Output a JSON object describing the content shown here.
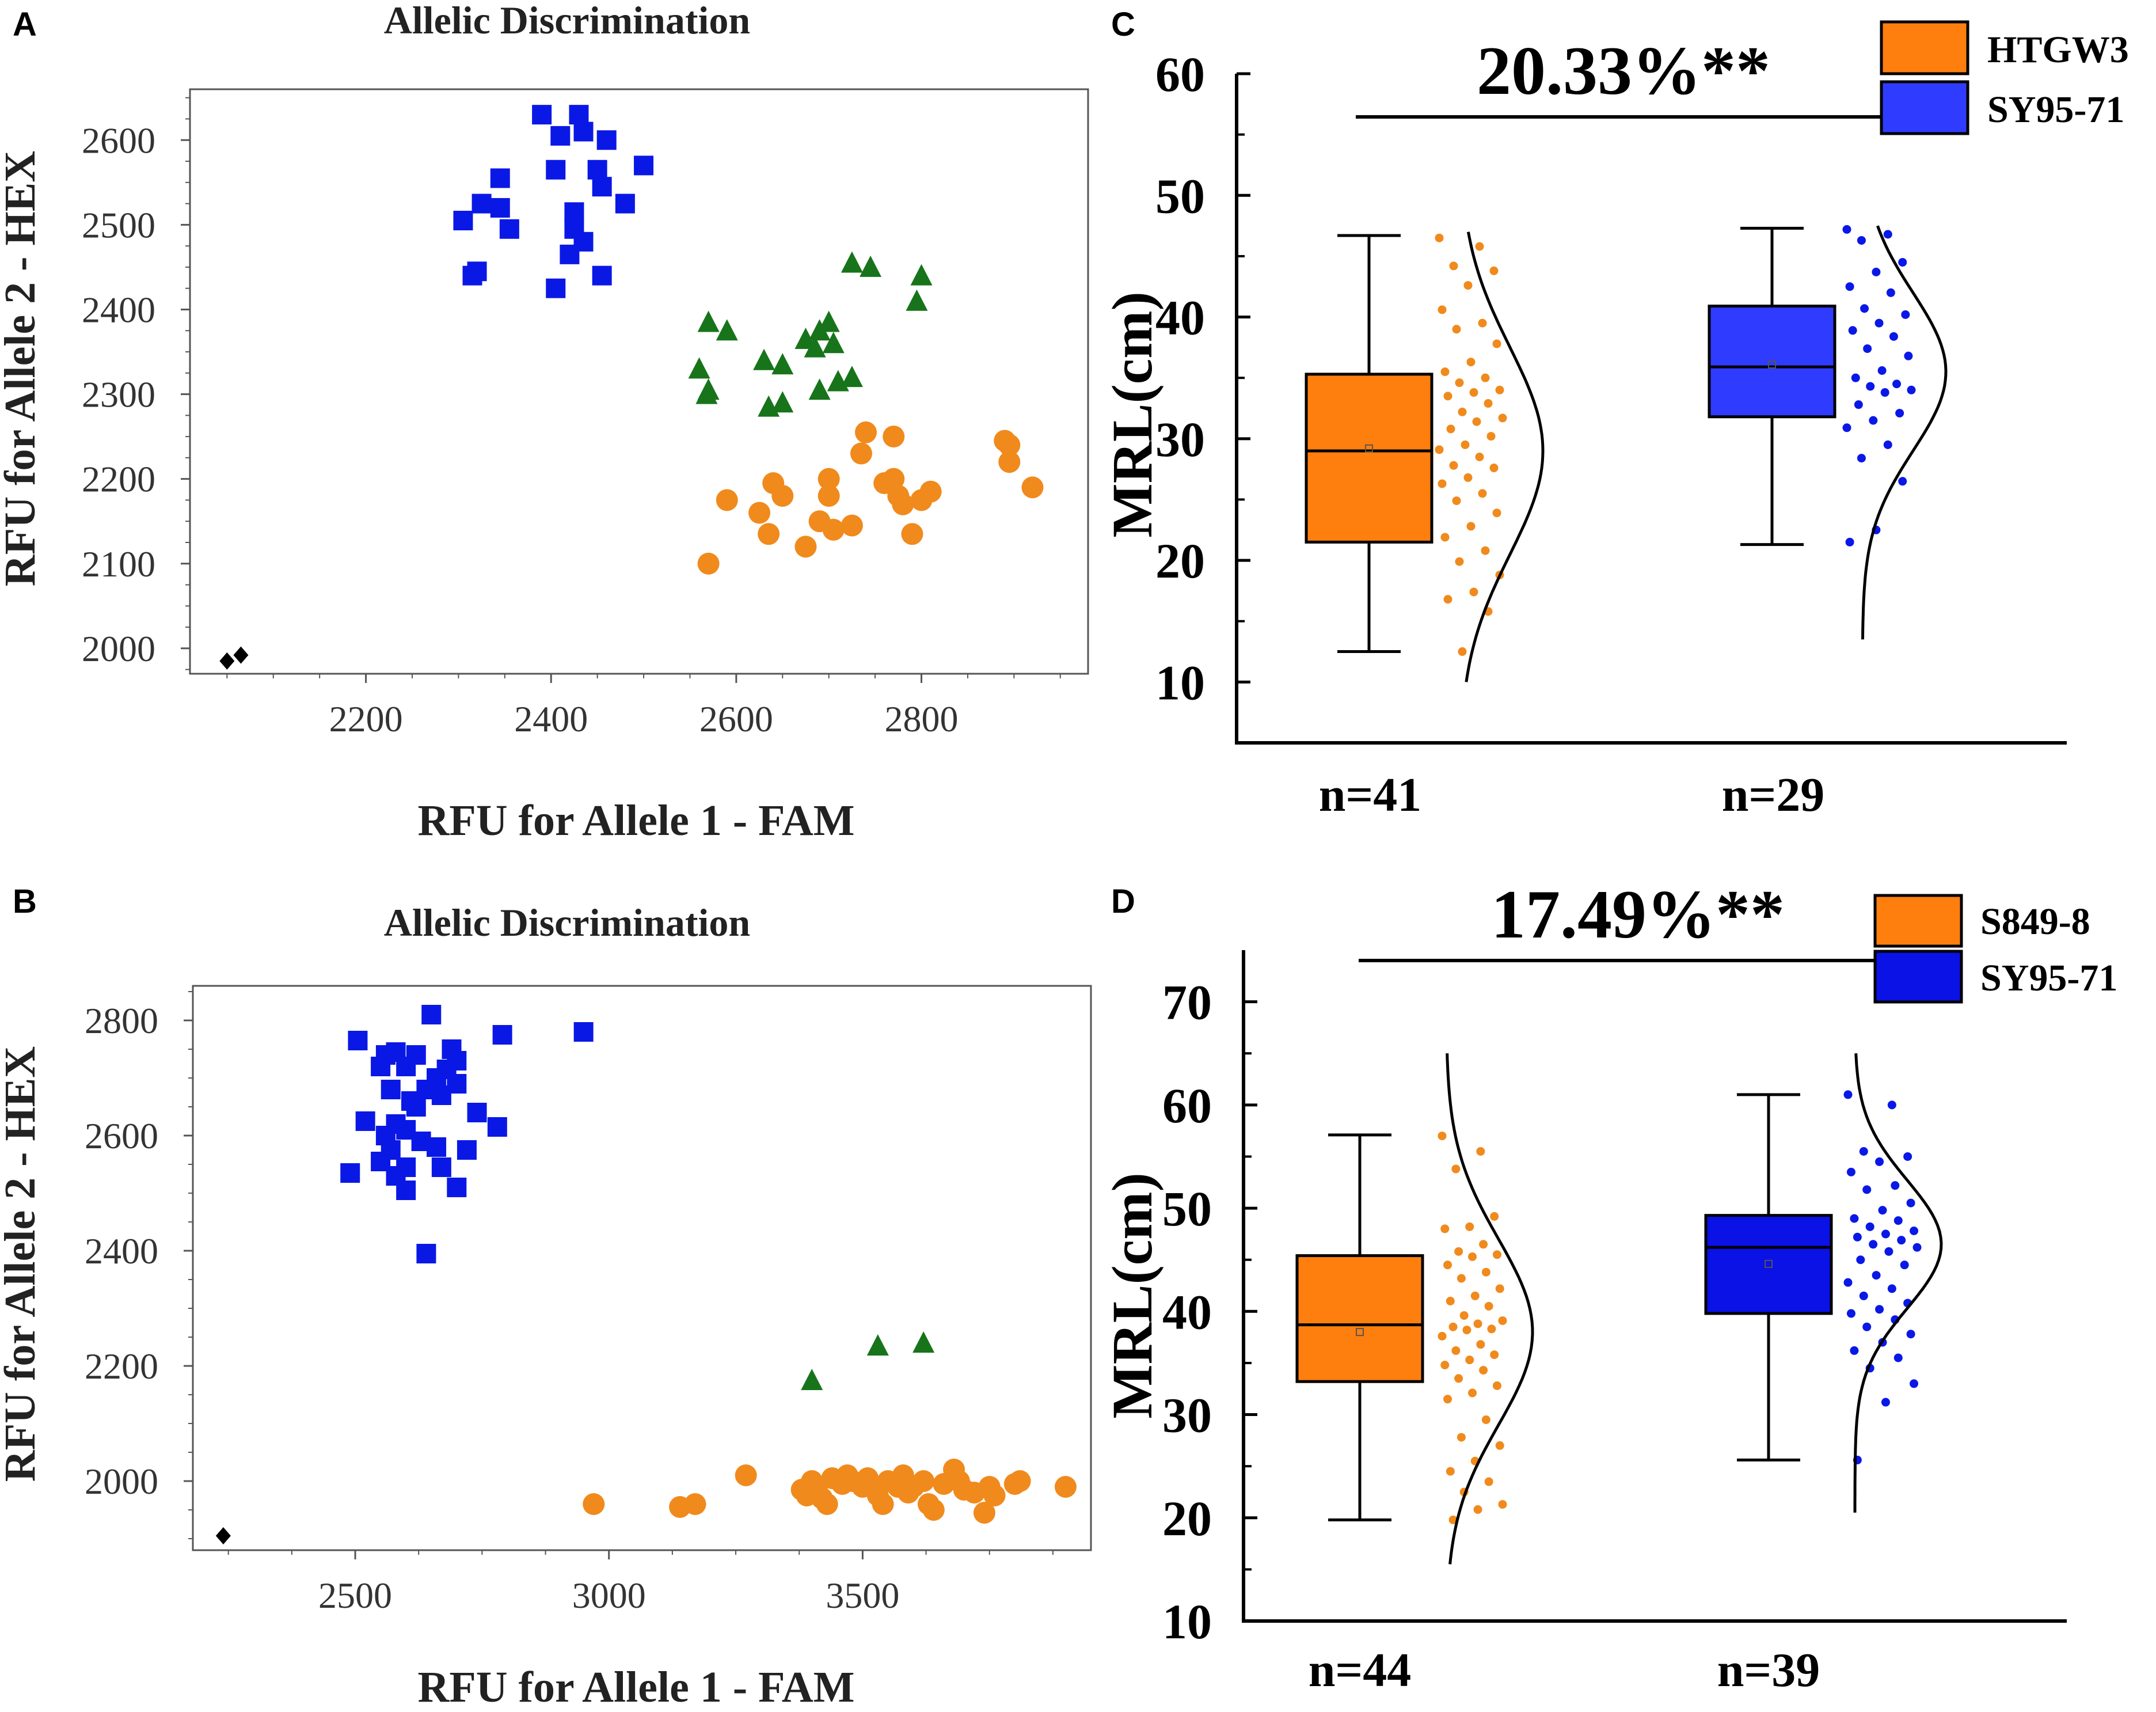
{
  "colors": {
    "blue_marker": "#0a18e6",
    "green_marker": "#17741a",
    "orange_marker": "#f08a1c",
    "black_marker": "#000000",
    "orange_box": "#ff7f0e",
    "blue_box_c": "#2f3cff",
    "blue_box_d": "#0a12e6",
    "axis_box": "#555555"
  },
  "chart_data": [
    {
      "panel": "A",
      "type": "scatter",
      "title": "Allelic Discrimination",
      "xlabel": "RFU for Allele 1 - FAM",
      "ylabel": "RFU for Allele 2 - HEX",
      "xlim": [
        2010,
        2980
      ],
      "ylim": [
        1970,
        2660
      ],
      "xticks": [
        2200,
        2400,
        2600,
        2800
      ],
      "yticks": [
        2000,
        2100,
        2200,
        2300,
        2400,
        2500,
        2600
      ],
      "series": [
        {
          "name": "blue",
          "marker": "square",
          "color": "#0a18e6",
          "points": [
            [
              2390,
              2630
            ],
            [
              2430,
              2630
            ],
            [
              2410,
              2605
            ],
            [
              2435,
              2610
            ],
            [
              2460,
              2600
            ],
            [
              2500,
              2570
            ],
            [
              2345,
              2555
            ],
            [
              2405,
              2565
            ],
            [
              2450,
              2565
            ],
            [
              2455,
              2545
            ],
            [
              2480,
              2525
            ],
            [
              2305,
              2505
            ],
            [
              2325,
              2525
            ],
            [
              2345,
              2520
            ],
            [
              2355,
              2495
            ],
            [
              2425,
              2515
            ],
            [
              2425,
              2495
            ],
            [
              2435,
              2480
            ],
            [
              2420,
              2465
            ],
            [
              2405,
              2425
            ],
            [
              2455,
              2440
            ],
            [
              2315,
              2440
            ],
            [
              2320,
              2445
            ]
          ]
        },
        {
          "name": "green",
          "marker": "triangle",
          "color": "#17741a",
          "points": [
            [
              2570,
              2385
            ],
            [
              2590,
              2375
            ],
            [
              2560,
              2330
            ],
            [
              2568,
              2300
            ],
            [
              2570,
              2305
            ],
            [
              2630,
              2340
            ],
            [
              2650,
              2335
            ],
            [
              2635,
              2285
            ],
            [
              2650,
              2290
            ],
            [
              2675,
              2365
            ],
            [
              2685,
              2355
            ],
            [
              2690,
              2375
            ],
            [
              2700,
              2385
            ],
            [
              2705,
              2360
            ],
            [
              2690,
              2305
            ],
            [
              2710,
              2315
            ],
            [
              2725,
              2320
            ],
            [
              2725,
              2455
            ],
            [
              2745,
              2450
            ],
            [
              2795,
              2410
            ],
            [
              2800,
              2440
            ]
          ]
        },
        {
          "name": "orange",
          "marker": "circle",
          "color": "#f08a1c",
          "points": [
            [
              2570,
              2100
            ],
            [
              2590,
              2175
            ],
            [
              2625,
              2160
            ],
            [
              2640,
              2195
            ],
            [
              2650,
              2180
            ],
            [
              2635,
              2135
            ],
            [
              2675,
              2120
            ],
            [
              2690,
              2150
            ],
            [
              2700,
              2180
            ],
            [
              2700,
              2200
            ],
            [
              2705,
              2140
            ],
            [
              2725,
              2145
            ],
            [
              2740,
              2255
            ],
            [
              2735,
              2230
            ],
            [
              2760,
              2195
            ],
            [
              2770,
              2250
            ],
            [
              2770,
              2200
            ],
            [
              2775,
              2180
            ],
            [
              2780,
              2170
            ],
            [
              2790,
              2135
            ],
            [
              2800,
              2175
            ],
            [
              2810,
              2185
            ],
            [
              2890,
              2245
            ],
            [
              2895,
              2240
            ],
            [
              2895,
              2220
            ],
            [
              2920,
              2190
            ]
          ]
        },
        {
          "name": "black",
          "marker": "diamond",
          "color": "#000000",
          "points": [
            [
              2050,
              1985
            ],
            [
              2065,
              1992
            ]
          ]
        }
      ]
    },
    {
      "panel": "B",
      "type": "scatter",
      "title": "Allelic Discrimination",
      "xlabel": "RFU for Allele 1 - FAM",
      "ylabel": "RFU for Allele 2 - HEX",
      "xlim": [
        2180,
        3950
      ],
      "ylim": [
        1880,
        2860
      ],
      "xticks": [
        2500,
        3000,
        3500
      ],
      "yticks": [
        2000,
        2200,
        2400,
        2600,
        2800
      ],
      "series": [
        {
          "name": "blue",
          "marker": "square",
          "color": "#0a18e6",
          "points": [
            [
              2650,
              2810
            ],
            [
              2950,
              2780
            ],
            [
              2790,
              2775
            ],
            [
              2505,
              2765
            ],
            [
              2560,
              2740
            ],
            [
              2580,
              2745
            ],
            [
              2620,
              2740
            ],
            [
              2690,
              2750
            ],
            [
              2700,
              2730
            ],
            [
              2550,
              2720
            ],
            [
              2600,
              2720
            ],
            [
              2680,
              2715
            ],
            [
              2660,
              2700
            ],
            [
              2700,
              2690
            ],
            [
              2570,
              2680
            ],
            [
              2640,
              2680
            ],
            [
              2610,
              2660
            ],
            [
              2620,
              2650
            ],
            [
              2670,
              2670
            ],
            [
              2520,
              2625
            ],
            [
              2580,
              2620
            ],
            [
              2740,
              2640
            ],
            [
              2780,
              2615
            ],
            [
              2560,
              2600
            ],
            [
              2600,
              2610
            ],
            [
              2630,
              2590
            ],
            [
              2570,
              2575
            ],
            [
              2660,
              2580
            ],
            [
              2720,
              2575
            ],
            [
              2550,
              2555
            ],
            [
              2600,
              2545
            ],
            [
              2670,
              2545
            ],
            [
              2490,
              2535
            ],
            [
              2580,
              2530
            ],
            [
              2700,
              2510
            ],
            [
              2600,
              2505
            ],
            [
              2640,
              2395
            ]
          ]
        },
        {
          "name": "green",
          "marker": "triangle",
          "color": "#17741a",
          "points": [
            [
              3400,
              2175
            ],
            [
              3530,
              2235
            ],
            [
              3620,
              2240
            ]
          ]
        },
        {
          "name": "orange",
          "marker": "circle",
          "color": "#f08a1c",
          "points": [
            [
              2970,
              1960
            ],
            [
              3140,
              1955
            ],
            [
              3170,
              1960
            ],
            [
              3270,
              2010
            ],
            [
              3380,
              1985
            ],
            [
              3390,
              1975
            ],
            [
              3400,
              2000
            ],
            [
              3410,
              1990
            ],
            [
              3420,
              1970
            ],
            [
              3430,
              1960
            ],
            [
              3440,
              2005
            ],
            [
              3460,
              1995
            ],
            [
              3470,
              2010
            ],
            [
              3480,
              2000
            ],
            [
              3500,
              1990
            ],
            [
              3510,
              2005
            ],
            [
              3520,
              1990
            ],
            [
              3530,
              1975
            ],
            [
              3540,
              1960
            ],
            [
              3550,
              2000
            ],
            [
              3570,
              1990
            ],
            [
              3580,
              2010
            ],
            [
              3590,
              1980
            ],
            [
              3600,
              1990
            ],
            [
              3620,
              2000
            ],
            [
              3630,
              1960
            ],
            [
              3640,
              1950
            ],
            [
              3660,
              1995
            ],
            [
              3680,
              2020
            ],
            [
              3690,
              2000
            ],
            [
              3700,
              1985
            ],
            [
              3720,
              1980
            ],
            [
              3740,
              1945
            ],
            [
              3750,
              1990
            ],
            [
              3760,
              1975
            ],
            [
              3800,
              1995
            ],
            [
              3810,
              2000
            ],
            [
              3900,
              1990
            ]
          ]
        },
        {
          "name": "black",
          "marker": "diamond",
          "color": "#000000",
          "points": [
            [
              2240,
              1905
            ]
          ]
        }
      ]
    },
    {
      "panel": "C",
      "type": "box",
      "ylabel": "MRL(cm)",
      "ylim": [
        5,
        60
      ],
      "yticks": [
        10,
        20,
        30,
        40,
        50,
        60
      ],
      "significance": "20.33%**",
      "legend": [
        "HTGW3",
        "SY95-71"
      ],
      "groups": [
        {
          "name": "HTGW3",
          "n_label": "n=41",
          "color": "#ff7f0e",
          "dot_color": "#f08a1c",
          "min": 12.5,
          "q1": 21.5,
          "median": 29,
          "q3": 35.3,
          "max": 46.7,
          "mean": 29.2,
          "normal_mu": 29,
          "normal_sigma": 8.5,
          "curve_range": [
            10,
            47
          ],
          "points": [
            46.5,
            45.8,
            44.2,
            43.8,
            42.6,
            40.6,
            39.5,
            39,
            37.8,
            36.3,
            35.5,
            35,
            34.6,
            34,
            33.8,
            33.5,
            32.9,
            32.2,
            31.7,
            31.4,
            30.8,
            30.2,
            29.5,
            29.1,
            28.5,
            27.8,
            27.6,
            26.8,
            26.3,
            25.5,
            24.9,
            23.9,
            22.8,
            21.9,
            20.8,
            19.9,
            18.8,
            17.4,
            16.8,
            15.8,
            12.5
          ]
        },
        {
          "name": "SY95-71",
          "n_label": "n=29",
          "color": "#2f3cff",
          "dot_color": "#0a18e6",
          "min": 21.3,
          "q1": 31.8,
          "median": 35.9,
          "q3": 40.9,
          "max": 47.3,
          "mean": 36.1,
          "normal_mu": 35.5,
          "normal_sigma": 6.5,
          "curve_range": [
            13.5,
            47.5
          ],
          "points": [
            47.2,
            46.8,
            46.3,
            44.5,
            43.7,
            42.5,
            42,
            40.7,
            40.2,
            39.5,
            38.9,
            38.4,
            37.4,
            36.8,
            35.6,
            35,
            34.5,
            34.3,
            34,
            33.8,
            32.8,
            32.1,
            31.5,
            30.9,
            29.5,
            28.4,
            26.5,
            22.5,
            21.5
          ]
        }
      ]
    },
    {
      "panel": "D",
      "type": "box",
      "ylabel": "MRL(cm)",
      "ylim": [
        10,
        75
      ],
      "yticks": [
        10,
        20,
        30,
        40,
        50,
        60,
        70
      ],
      "significance": "17.49%**",
      "legend": [
        "S849-8",
        "SY95-71"
      ],
      "groups": [
        {
          "name": "S849-8",
          "n_label": "n=44",
          "color": "#ff7f0e",
          "dot_color": "#f08a1c",
          "min": 19.8,
          "q1": 33.2,
          "median": 38.7,
          "q3": 45.4,
          "max": 57.1,
          "mean": 38,
          "normal_mu": 38,
          "normal_sigma": 9,
          "curve_range": [
            15.5,
            65
          ],
          "points": [
            57,
            55.5,
            53.8,
            49.2,
            48.2,
            48,
            46.5,
            45.8,
            45.5,
            45.3,
            44.5,
            43.8,
            43.2,
            42.2,
            41.5,
            41,
            40.5,
            39.6,
            39.1,
            38.8,
            38.5,
            38.3,
            38.2,
            37.6,
            36.8,
            36.2,
            35.8,
            35.3,
            34.8,
            34.3,
            33.5,
            32.8,
            32.1,
            31.5,
            29.5,
            27.8,
            27,
            25.5,
            24.5,
            23.5,
            22.5,
            21.3,
            20.8,
            19.8
          ]
        },
        {
          "name": "SY95-71",
          "n_label": "n=39",
          "color": "#0a12e6",
          "dot_color": "#0a18e6",
          "min": 25.6,
          "q1": 39.8,
          "median": 46.2,
          "q3": 49.3,
          "max": 61,
          "mean": 44.6,
          "normal_mu": 46.5,
          "normal_sigma": 6.2,
          "curve_range": [
            20.5,
            65
          ],
          "points": [
            61,
            60,
            55.5,
            55,
            54.5,
            53.5,
            52.2,
            51.8,
            50.5,
            49.8,
            49,
            48.8,
            48.2,
            47.8,
            47.5,
            47.2,
            46.9,
            46.5,
            46.2,
            45.8,
            45,
            44.5,
            43.5,
            42.8,
            42.2,
            41.5,
            40.8,
            40.2,
            39.8,
            39.2,
            38.5,
            37.8,
            37,
            36.2,
            35.5,
            34.5,
            33,
            31.2,
            25.6
          ]
        }
      ]
    }
  ]
}
